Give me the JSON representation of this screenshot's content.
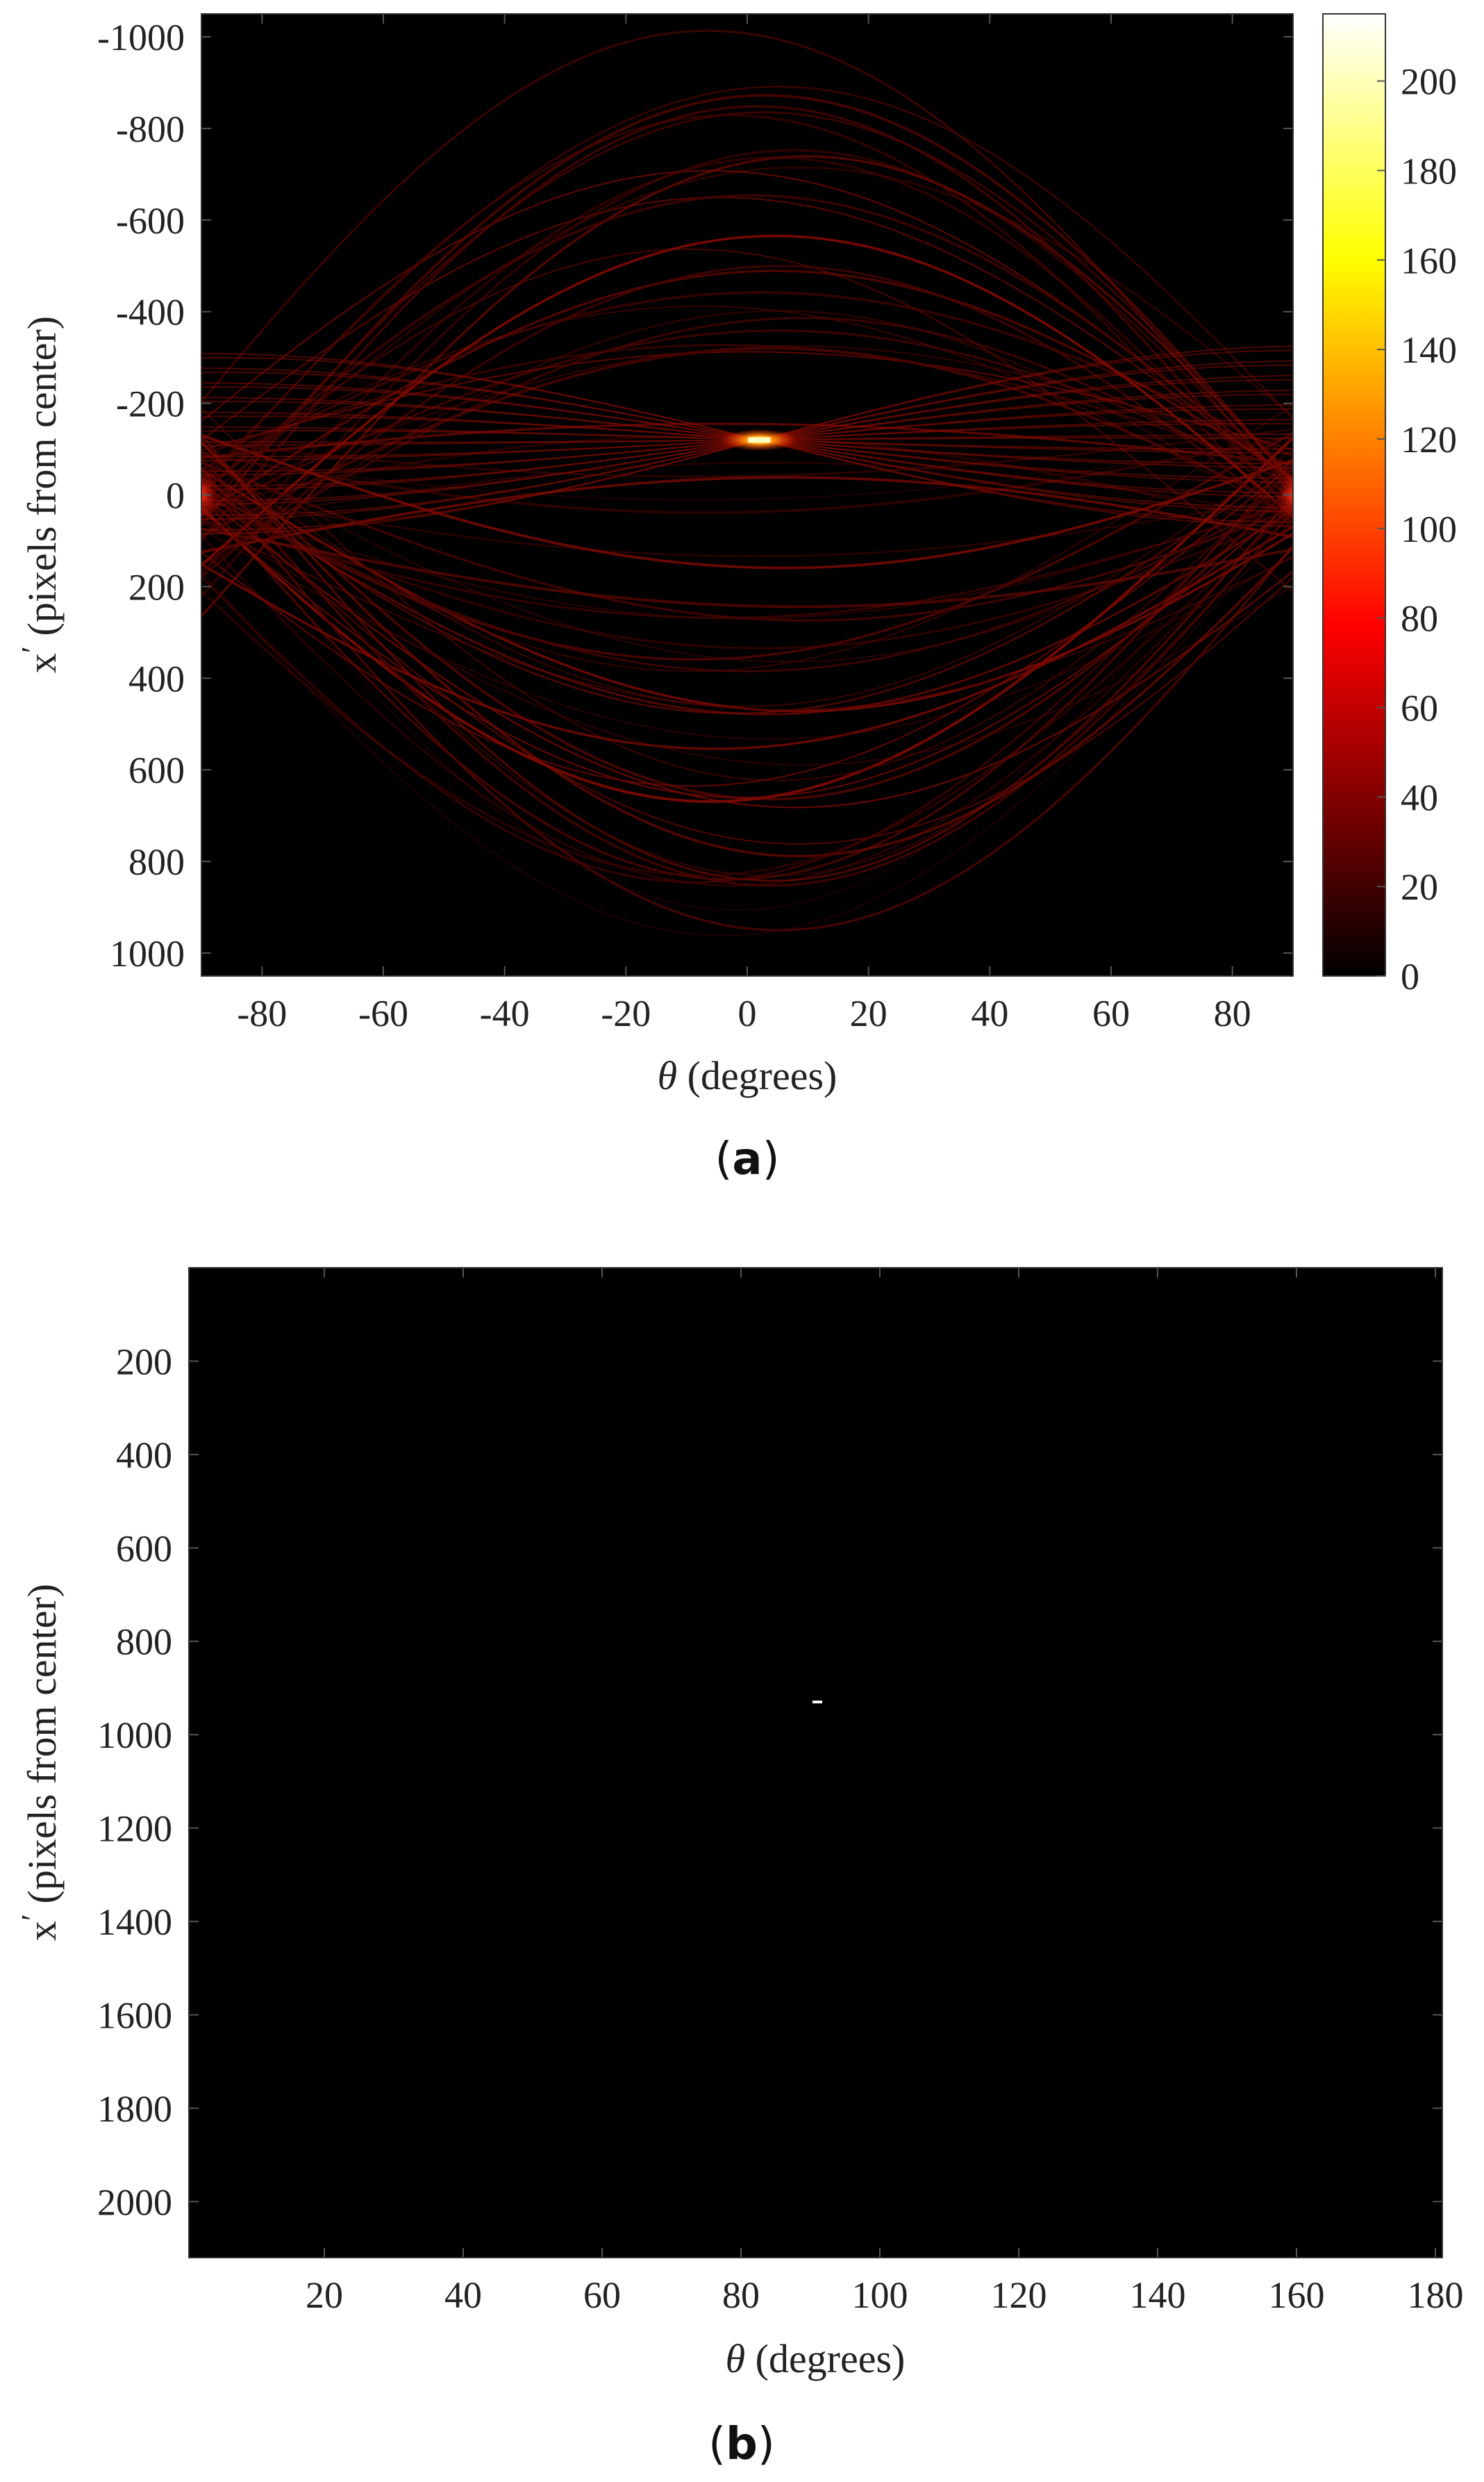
{
  "chart_data": [
    {
      "type": "heatmap",
      "panel_label": {
        "open": "(",
        "letter": "a",
        "close": ")"
      },
      "colormap": "hot",
      "xlabel": {
        "symbol": "θ",
        "text": " (degrees)"
      },
      "ylabel": {
        "symbol": "x",
        "prime": "′",
        "text": " (pixels from center)"
      },
      "xlim": [
        -90,
        90
      ],
      "ylim": [
        -1050,
        1050
      ],
      "y_reversed": true,
      "xticks": [
        -80,
        -60,
        -40,
        -20,
        0,
        20,
        40,
        60,
        80
      ],
      "yticks": [
        -1000,
        -800,
        -600,
        -400,
        -200,
        0,
        200,
        400,
        600,
        800,
        1000
      ],
      "colorbar": {
        "min": 0,
        "max": 215,
        "ticks": [
          0,
          20,
          40,
          60,
          80,
          100,
          120,
          140,
          160,
          180,
          200
        ]
      },
      "peak": {
        "theta": 2,
        "x": -120,
        "value": 215
      },
      "background_value": 0
    },
    {
      "type": "heatmap",
      "panel_label": {
        "open": "(",
        "letter": "b",
        "close": ")"
      },
      "colormap": "hot",
      "xlabel": {
        "symbol": "θ",
        "text": " (degrees)"
      },
      "ylabel": {
        "symbol": "x",
        "prime": "′",
        "text": " (pixels from center)"
      },
      "xlim": [
        0.5,
        181
      ],
      "ylim": [
        0,
        2120
      ],
      "y_reversed": true,
      "xticks": [
        20,
        40,
        60,
        80,
        100,
        120,
        140,
        160,
        180
      ],
      "yticks": [
        200,
        400,
        600,
        800,
        1000,
        1200,
        1400,
        1600,
        1800,
        2000
      ],
      "peak": {
        "theta": 91,
        "x": 930
      },
      "background_value": 0
    }
  ]
}
